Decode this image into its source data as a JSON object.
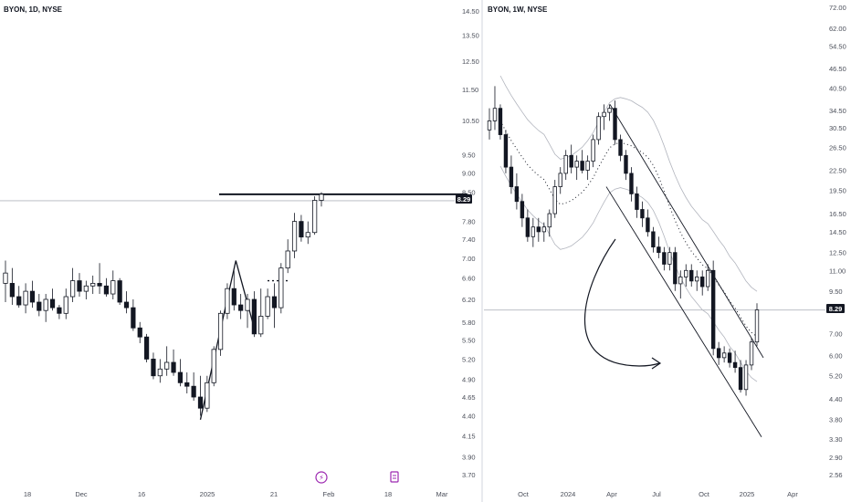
{
  "chart_data": [
    {
      "type": "candlestick",
      "title": "BYON, 1D, NYSE",
      "price_label": "8.29",
      "x_tick_labels": [
        "18",
        "Dec",
        "16",
        "2025",
        "21",
        "Feb",
        "18",
        "Mar"
      ],
      "y_tick_labels": [
        "14.50",
        "13.50",
        "12.50",
        "11.50",
        "10.50",
        "9.50",
        "9.00",
        "8.50",
        "7.80",
        "7.40",
        "7.00",
        "6.60",
        "6.20",
        "5.80",
        "5.50",
        "5.20",
        "4.90",
        "4.65",
        "4.40",
        "4.15",
        "3.90",
        "3.70"
      ],
      "y_scale": "log",
      "ylim": [
        3.7,
        14.5
      ],
      "horizontal_level": 8.29,
      "resistance_level": 8.45,
      "candles": [
        {
          "o": 6.5,
          "h": 6.95,
          "l": 6.15,
          "c": 6.7
        },
        {
          "o": 6.5,
          "h": 6.8,
          "l": 6.1,
          "c": 6.25
        },
        {
          "o": 6.25,
          "h": 6.45,
          "l": 6.05,
          "c": 6.1
        },
        {
          "o": 6.1,
          "h": 6.5,
          "l": 5.95,
          "c": 6.35
        },
        {
          "o": 6.35,
          "h": 6.55,
          "l": 6.05,
          "c": 6.15
        },
        {
          "o": 6.15,
          "h": 6.3,
          "l": 5.9,
          "c": 6.0
        },
        {
          "o": 6.0,
          "h": 6.3,
          "l": 5.8,
          "c": 6.2
        },
        {
          "o": 6.2,
          "h": 6.4,
          "l": 6.0,
          "c": 6.05
        },
        {
          "o": 6.05,
          "h": 6.1,
          "l": 5.85,
          "c": 5.95
        },
        {
          "o": 5.95,
          "h": 6.4,
          "l": 5.85,
          "c": 6.25
        },
        {
          "o": 6.25,
          "h": 6.8,
          "l": 6.15,
          "c": 6.55
        },
        {
          "o": 6.55,
          "h": 6.7,
          "l": 6.25,
          "c": 6.35
        },
        {
          "o": 6.35,
          "h": 6.55,
          "l": 6.2,
          "c": 6.45
        },
        {
          "o": 6.45,
          "h": 6.65,
          "l": 6.3,
          "c": 6.5
        },
        {
          "o": 6.5,
          "h": 6.9,
          "l": 6.3,
          "c": 6.45
        },
        {
          "o": 6.45,
          "h": 6.6,
          "l": 6.25,
          "c": 6.3
        },
        {
          "o": 6.3,
          "h": 6.75,
          "l": 6.2,
          "c": 6.55
        },
        {
          "o": 6.55,
          "h": 6.6,
          "l": 6.1,
          "c": 6.15
        },
        {
          "o": 6.15,
          "h": 6.35,
          "l": 5.95,
          "c": 6.05
        },
        {
          "o": 6.05,
          "h": 6.2,
          "l": 5.65,
          "c": 5.7
        },
        {
          "o": 5.7,
          "h": 5.8,
          "l": 5.45,
          "c": 5.55
        },
        {
          "o": 5.55,
          "h": 5.6,
          "l": 5.15,
          "c": 5.2
        },
        {
          "o": 5.2,
          "h": 5.3,
          "l": 4.9,
          "c": 4.95
        },
        {
          "o": 4.95,
          "h": 5.2,
          "l": 4.85,
          "c": 5.05
        },
        {
          "o": 5.05,
          "h": 5.4,
          "l": 4.95,
          "c": 5.15
        },
        {
          "o": 5.15,
          "h": 5.35,
          "l": 4.95,
          "c": 5.0
        },
        {
          "o": 5.0,
          "h": 5.2,
          "l": 4.8,
          "c": 4.85
        },
        {
          "o": 4.85,
          "h": 5.0,
          "l": 4.7,
          "c": 4.8
        },
        {
          "o": 4.8,
          "h": 5.0,
          "l": 4.6,
          "c": 4.65
        },
        {
          "o": 4.65,
          "h": 4.95,
          "l": 4.4,
          "c": 4.5
        },
        {
          "o": 4.5,
          "h": 4.95,
          "l": 4.45,
          "c": 4.85
        },
        {
          "o": 4.85,
          "h": 5.4,
          "l": 4.8,
          "c": 5.35
        },
        {
          "o": 5.35,
          "h": 6.0,
          "l": 5.25,
          "c": 5.95
        },
        {
          "o": 5.95,
          "h": 6.5,
          "l": 5.85,
          "c": 6.4
        },
        {
          "o": 6.4,
          "h": 6.75,
          "l": 6.0,
          "c": 6.1
        },
        {
          "o": 6.1,
          "h": 6.3,
          "l": 5.85,
          "c": 6.0
        },
        {
          "o": 6.0,
          "h": 6.3,
          "l": 5.7,
          "c": 6.2
        },
        {
          "o": 6.2,
          "h": 6.35,
          "l": 5.55,
          "c": 5.6
        },
        {
          "o": 5.6,
          "h": 6.4,
          "l": 5.55,
          "c": 5.9
        },
        {
          "o": 5.9,
          "h": 6.4,
          "l": 5.85,
          "c": 6.25
        },
        {
          "o": 6.25,
          "h": 6.5,
          "l": 5.7,
          "c": 6.05
        },
        {
          "o": 6.05,
          "h": 6.9,
          "l": 5.95,
          "c": 6.8
        },
        {
          "o": 6.8,
          "h": 7.4,
          "l": 6.7,
          "c": 7.15
        },
        {
          "o": 7.15,
          "h": 8.0,
          "l": 7.0,
          "c": 7.8
        },
        {
          "o": 7.8,
          "h": 7.95,
          "l": 7.35,
          "c": 7.45
        },
        {
          "o": 7.45,
          "h": 7.8,
          "l": 7.3,
          "c": 7.55
        },
        {
          "o": 7.55,
          "h": 8.4,
          "l": 7.5,
          "c": 8.3
        },
        {
          "o": 8.3,
          "h": 8.5,
          "l": 8.15,
          "c": 8.45
        }
      ]
    },
    {
      "type": "candlestick",
      "title": "BYON, 1W, NYSE",
      "price_label": "8.29",
      "x_tick_labels": [
        "Oct",
        "2024",
        "Apr",
        "Jul",
        "Oct",
        "2025",
        "Apr"
      ],
      "y_tick_labels": [
        "72.00",
        "62.00",
        "54.50",
        "46.50",
        "40.50",
        "34.50",
        "30.50",
        "26.50",
        "22.50",
        "19.50",
        "16.50",
        "14.50",
        "12.50",
        "11.00",
        "9.50",
        "7.00",
        "6.00",
        "5.20",
        "4.40",
        "3.80",
        "3.30",
        "2.90",
        "2.56"
      ],
      "y_scale": "log",
      "ylim": [
        2.56,
        72
      ],
      "horizontal_level": 8.29,
      "candles": [
        {
          "o": 30,
          "h": 35,
          "l": 28,
          "c": 32
        },
        {
          "o": 32,
          "h": 41,
          "l": 30,
          "c": 35
        },
        {
          "o": 35,
          "h": 36,
          "l": 28,
          "c": 29
        },
        {
          "o": 29,
          "h": 30,
          "l": 22,
          "c": 23
        },
        {
          "o": 23,
          "h": 25,
          "l": 19,
          "c": 20
        },
        {
          "o": 20,
          "h": 22,
          "l": 17,
          "c": 18
        },
        {
          "o": 18,
          "h": 19,
          "l": 15,
          "c": 16
        },
        {
          "o": 16,
          "h": 17,
          "l": 13.5,
          "c": 14
        },
        {
          "o": 14,
          "h": 16,
          "l": 13,
          "c": 15
        },
        {
          "o": 15,
          "h": 16,
          "l": 13.5,
          "c": 14.5
        },
        {
          "o": 14.5,
          "h": 15.5,
          "l": 13.5,
          "c": 15
        },
        {
          "o": 15,
          "h": 17,
          "l": 14,
          "c": 16.5
        },
        {
          "o": 16.5,
          "h": 21,
          "l": 16,
          "c": 20
        },
        {
          "o": 20,
          "h": 23,
          "l": 19,
          "c": 22
        },
        {
          "o": 22,
          "h": 26,
          "l": 21,
          "c": 25
        },
        {
          "o": 25,
          "h": 27,
          "l": 22,
          "c": 23
        },
        {
          "o": 23,
          "h": 25,
          "l": 21,
          "c": 24
        },
        {
          "o": 24,
          "h": 26,
          "l": 22,
          "c": 22.5
        },
        {
          "o": 22.5,
          "h": 25,
          "l": 21,
          "c": 24
        },
        {
          "o": 24,
          "h": 29,
          "l": 23,
          "c": 28
        },
        {
          "o": 28,
          "h": 34,
          "l": 27,
          "c": 33
        },
        {
          "o": 33,
          "h": 36,
          "l": 30,
          "c": 34
        },
        {
          "o": 34,
          "h": 36,
          "l": 32,
          "c": 35
        },
        {
          "o": 35,
          "h": 37,
          "l": 27,
          "c": 28
        },
        {
          "o": 28,
          "h": 29,
          "l": 24,
          "c": 25
        },
        {
          "o": 25,
          "h": 26,
          "l": 21,
          "c": 22
        },
        {
          "o": 22,
          "h": 23,
          "l": 18,
          "c": 19
        },
        {
          "o": 19,
          "h": 20,
          "l": 16,
          "c": 17
        },
        {
          "o": 17,
          "h": 18,
          "l": 15,
          "c": 16
        },
        {
          "o": 16,
          "h": 17,
          "l": 14,
          "c": 14.5
        },
        {
          "o": 14.5,
          "h": 15,
          "l": 12.5,
          "c": 13
        },
        {
          "o": 13,
          "h": 14,
          "l": 12,
          "c": 12.5
        },
        {
          "o": 12.5,
          "h": 13,
          "l": 11,
          "c": 11.5
        },
        {
          "o": 11.5,
          "h": 13,
          "l": 11,
          "c": 12.5
        },
        {
          "o": 12.5,
          "h": 13,
          "l": 9.5,
          "c": 10
        },
        {
          "o": 10,
          "h": 11,
          "l": 9,
          "c": 10.5
        },
        {
          "o": 10.5,
          "h": 11.5,
          "l": 9.8,
          "c": 11
        },
        {
          "o": 11,
          "h": 11.5,
          "l": 9.8,
          "c": 10.2
        },
        {
          "o": 10.2,
          "h": 11,
          "l": 9.5,
          "c": 10.5
        },
        {
          "o": 10.5,
          "h": 11,
          "l": 9.2,
          "c": 9.8
        },
        {
          "o": 9.8,
          "h": 11.5,
          "l": 9.5,
          "c": 11
        },
        {
          "o": 11,
          "h": 11.8,
          "l": 6,
          "c": 6.3
        },
        {
          "o": 6.3,
          "h": 6.6,
          "l": 5.6,
          "c": 5.9
        },
        {
          "o": 5.9,
          "h": 6.4,
          "l": 5.7,
          "c": 6.1
        },
        {
          "o": 6.1,
          "h": 6.3,
          "l": 5.5,
          "c": 5.7
        },
        {
          "o": 5.7,
          "h": 6.2,
          "l": 5.3,
          "c": 5.5
        },
        {
          "o": 5.5,
          "h": 5.8,
          "l": 4.6,
          "c": 4.7
        },
        {
          "o": 4.7,
          "h": 5.8,
          "l": 4.5,
          "c": 5.6
        },
        {
          "o": 5.6,
          "h": 6.8,
          "l": 5.4,
          "c": 6.6
        },
        {
          "o": 6.6,
          "h": 8.7,
          "l": 6.4,
          "c": 8.3
        }
      ]
    }
  ],
  "toolbar_icons": [
    {
      "name": "flash-event-icon",
      "glyph": "⚡"
    },
    {
      "name": "earnings-event-icon",
      "glyph": "▯"
    }
  ]
}
